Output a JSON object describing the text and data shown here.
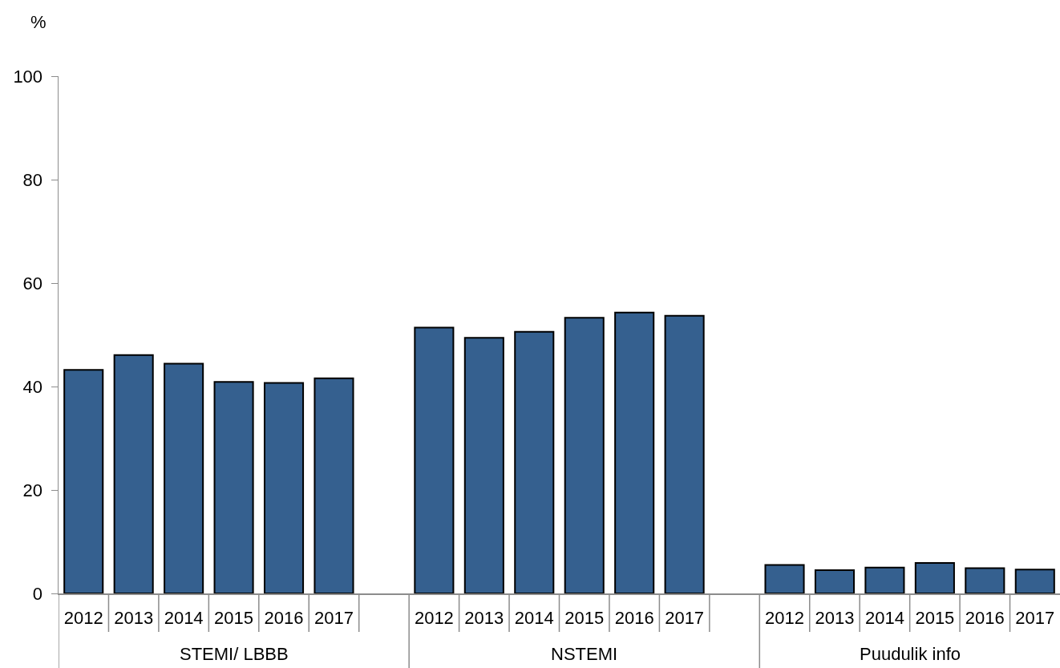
{
  "chart_data": {
    "type": "bar",
    "ylabel": "%",
    "categories": [
      "2012",
      "2013",
      "2014",
      "2015",
      "2016",
      "2017",
      null,
      "2012",
      "2013",
      "2014",
      "2015",
      "2016",
      "2017",
      null,
      "2012",
      "2013",
      "2014",
      "2015",
      "2016",
      "2017"
    ],
    "values": [
      43.2,
      46.1,
      44.4,
      40.9,
      40.7,
      41.6,
      null,
      51.4,
      49.4,
      50.6,
      53.3,
      54.3,
      53.7,
      null,
      5.5,
      4.5,
      5.0,
      5.9,
      4.9,
      4.6
    ],
    "color": "#35608f",
    "annotations": [
      "STEMI/ LBBB",
      "NSTEMI",
      "Puudulik info"
    ],
    "ylim": [
      0,
      100
    ],
    "yticks": [
      0,
      20,
      40,
      60,
      80,
      100
    ],
    "grid": false
  }
}
